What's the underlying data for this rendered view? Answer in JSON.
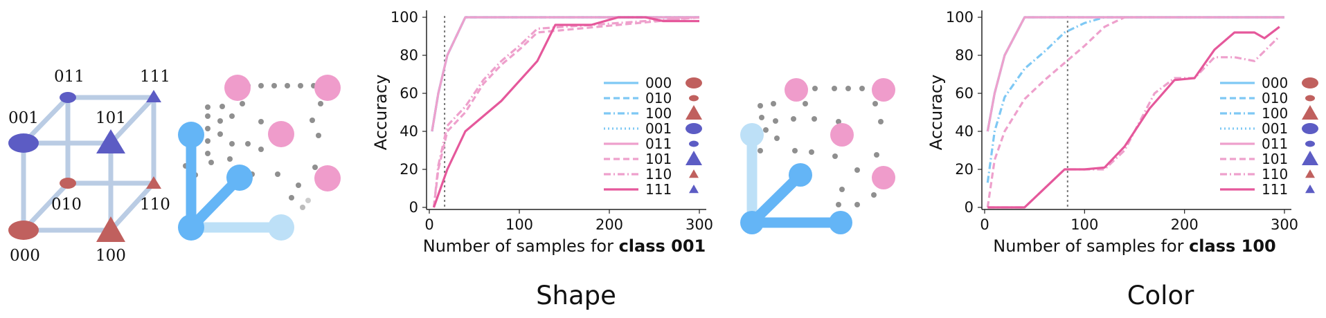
{
  "cube_labels": [
    "000",
    "001",
    "010",
    "011",
    "100",
    "101",
    "110",
    "111"
  ],
  "colors": {
    "blue_light": "#7ec8f4",
    "blue_mid": "#64b5f6",
    "blue_pale": "#bde0f7",
    "pink_light": "#eea0cc",
    "pink_dark": "#e5589b",
    "cube_red": "#c0605e",
    "cube_purple": "#5c5cc4",
    "cube_edge": "#aec4e0",
    "node_pink": "#ef9ccb",
    "dot_gray": "#8f8f8f"
  },
  "sections": {
    "left": "Shape",
    "right": "Color"
  },
  "chart_data": [
    {
      "type": "line",
      "xlabel": "Number of samples for class 001",
      "xlabel_prefix": "Number of samples for ",
      "xlabel_bold": "class 001",
      "ylabel": "Accuracy",
      "xlim": [
        0,
        300
      ],
      "ylim": [
        0,
        100
      ],
      "xticks": [
        0,
        100,
        200,
        300
      ],
      "yticks": [
        0,
        20,
        40,
        60,
        80,
        100
      ],
      "vline_x": 17,
      "legend_position": "right",
      "series": [
        {
          "name": "000",
          "color": "#7ec8f4",
          "dash": "solid",
          "marker": "ellipse-large-red",
          "x": [
            3,
            10,
            20,
            40,
            300
          ],
          "y": [
            40,
            60,
            80,
            100,
            100
          ]
        },
        {
          "name": "010",
          "color": "#7ec8f4",
          "dash": "dashed",
          "marker": "ellipse-small-red",
          "x": [
            3,
            10,
            20,
            40,
            300
          ],
          "y": [
            40,
            60,
            80,
            100,
            100
          ]
        },
        {
          "name": "100",
          "color": "#7ec8f4",
          "dash": "dashdot",
          "marker": "triangle-large-red",
          "x": [
            3,
            10,
            20,
            40,
            300
          ],
          "y": [
            40,
            60,
            80,
            100,
            100
          ]
        },
        {
          "name": "001",
          "color": "#7ec8f4",
          "dash": "dotted",
          "marker": "ellipse-large-purple",
          "x": [
            3,
            10,
            20,
            40,
            300
          ],
          "y": [
            40,
            60,
            80,
            100,
            100
          ]
        },
        {
          "name": "011",
          "color": "#eea0cc",
          "dash": "solid",
          "marker": "ellipse-small-purple",
          "x": [
            3,
            10,
            20,
            40,
            300
          ],
          "y": [
            40,
            60,
            80,
            100,
            100
          ]
        },
        {
          "name": "101",
          "color": "#eea0cc",
          "dash": "dashed",
          "marker": "triangle-large-purple",
          "x": [
            5,
            10,
            20,
            40,
            60,
            80,
            100,
            120,
            300
          ],
          "y": [
            0,
            20,
            40,
            50,
            65,
            75,
            83,
            92,
            100
          ]
        },
        {
          "name": "110",
          "color": "#eea0cc",
          "dash": "dashdot",
          "marker": "triangle-small-red",
          "x": [
            5,
            10,
            20,
            40,
            60,
            80,
            100,
            120,
            300
          ],
          "y": [
            0,
            22,
            43,
            53,
            67,
            77,
            85,
            94,
            100
          ]
        },
        {
          "name": "111",
          "color": "#e5589b",
          "dash": "solid",
          "marker": "triangle-small-purple",
          "x": [
            5,
            20,
            40,
            80,
            120,
            140,
            180,
            210,
            240,
            260,
            300
          ],
          "y": [
            0,
            20,
            40,
            56,
            77,
            96,
            96,
            100,
            100,
            98,
            98
          ]
        }
      ]
    },
    {
      "type": "line",
      "xlabel": "Number of samples for class 100",
      "xlabel_prefix": "Number of samples for ",
      "xlabel_bold": "class 100",
      "ylabel": "Accuracy",
      "xlim": [
        0,
        300
      ],
      "ylim": [
        0,
        100
      ],
      "xticks": [
        0,
        100,
        200,
        300
      ],
      "yticks": [
        0,
        20,
        40,
        60,
        80,
        100
      ],
      "vline_x": 83,
      "legend_position": "right",
      "series": [
        {
          "name": "000",
          "color": "#7ec8f4",
          "dash": "solid",
          "marker": "ellipse-large-red",
          "x": [
            3,
            10,
            20,
            40,
            300
          ],
          "y": [
            40,
            60,
            80,
            100,
            100
          ]
        },
        {
          "name": "010",
          "color": "#7ec8f4",
          "dash": "dashed",
          "marker": "ellipse-small-red",
          "x": [
            3,
            10,
            20,
            40,
            300
          ],
          "y": [
            40,
            60,
            80,
            100,
            100
          ]
        },
        {
          "name": "100",
          "color": "#7ec8f4",
          "dash": "dashdot",
          "marker": "triangle-large-red",
          "x": [
            3,
            10,
            20,
            40,
            60,
            80,
            100,
            120,
            300
          ],
          "y": [
            13,
            40,
            58,
            73,
            82,
            92,
            97,
            100,
            100
          ]
        },
        {
          "name": "001",
          "color": "#7ec8f4",
          "dash": "dotted",
          "marker": "ellipse-large-purple",
          "x": [
            3,
            10,
            20,
            40,
            300
          ],
          "y": [
            40,
            60,
            80,
            100,
            100
          ]
        },
        {
          "name": "011",
          "color": "#eea0cc",
          "dash": "solid",
          "marker": "ellipse-small-purple",
          "x": [
            3,
            10,
            20,
            40,
            300
          ],
          "y": [
            40,
            60,
            80,
            100,
            100
          ]
        },
        {
          "name": "101",
          "color": "#eea0cc",
          "dash": "dashed",
          "marker": "triangle-large-purple",
          "x": [
            3,
            10,
            20,
            40,
            60,
            80,
            100,
            120,
            140,
            300
          ],
          "y": [
            0,
            25,
            40,
            57,
            67,
            76,
            85,
            95,
            100,
            100
          ]
        },
        {
          "name": "110",
          "color": "#eea0cc",
          "dash": "dashdot",
          "marker": "triangle-small-red",
          "x": [
            3,
            40,
            80,
            100,
            120,
            140,
            170,
            190,
            210,
            230,
            250,
            270,
            295
          ],
          "y": [
            0,
            0,
            20,
            20,
            20,
            30,
            60,
            68,
            68,
            79,
            79,
            77,
            90
          ]
        },
        {
          "name": "111",
          "color": "#e5589b",
          "dash": "solid",
          "marker": "triangle-small-purple",
          "x": [
            3,
            40,
            80,
            100,
            120,
            140,
            165,
            190,
            210,
            230,
            250,
            270,
            280,
            295
          ],
          "y": [
            0,
            0,
            20,
            20,
            21,
            32,
            52,
            67,
            68,
            83,
            92,
            92,
            89,
            95
          ]
        }
      ]
    }
  ]
}
